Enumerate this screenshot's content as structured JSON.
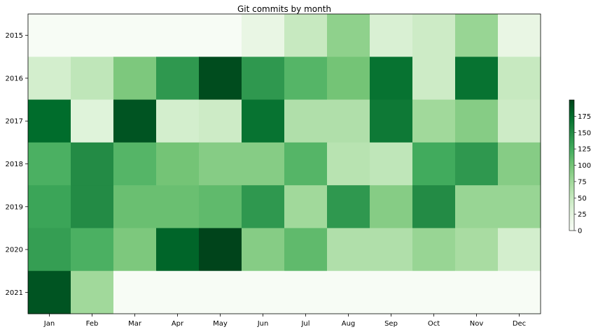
{
  "chart_data": {
    "type": "heatmap",
    "title": "Git commits by month",
    "xlabel": "",
    "ylabel": "",
    "x_categories": [
      "Jan",
      "Feb",
      "Mar",
      "Apr",
      "May",
      "Jun",
      "Jul",
      "Aug",
      "Sep",
      "Oct",
      "Nov",
      "Dec"
    ],
    "y_categories": [
      "2015",
      "2016",
      "2017",
      "2018",
      "2019",
      "2020",
      "2021"
    ],
    "values": [
      [
        0,
        0,
        0,
        0,
        0,
        20,
        50,
        85,
        35,
        45,
        80,
        20
      ],
      [
        40,
        55,
        95,
        140,
        195,
        140,
        115,
        100,
        170,
        45,
        170,
        50
      ],
      [
        175,
        30,
        190,
        40,
        45,
        170,
        65,
        65,
        165,
        75,
        90,
        45
      ],
      [
        120,
        150,
        115,
        100,
        90,
        90,
        115,
        60,
        55,
        125,
        140,
        90
      ],
      [
        130,
        150,
        105,
        105,
        110,
        140,
        75,
        140,
        90,
        150,
        80,
        80
      ],
      [
        135,
        120,
        95,
        180,
        245,
        90,
        110,
        65,
        65,
        80,
        70,
        40
      ],
      [
        190,
        75,
        0,
        0,
        0,
        0,
        0,
        0,
        0,
        0,
        0,
        0
      ]
    ],
    "colorbar": {
      "ticks": [
        0,
        25,
        50,
        75,
        100,
        125,
        150,
        175
      ],
      "min": 0,
      "max": 200
    },
    "colormap": "Greens",
    "colors": {
      "low": "#f7fcf5",
      "high": "#00441b"
    },
    "grid": false
  }
}
